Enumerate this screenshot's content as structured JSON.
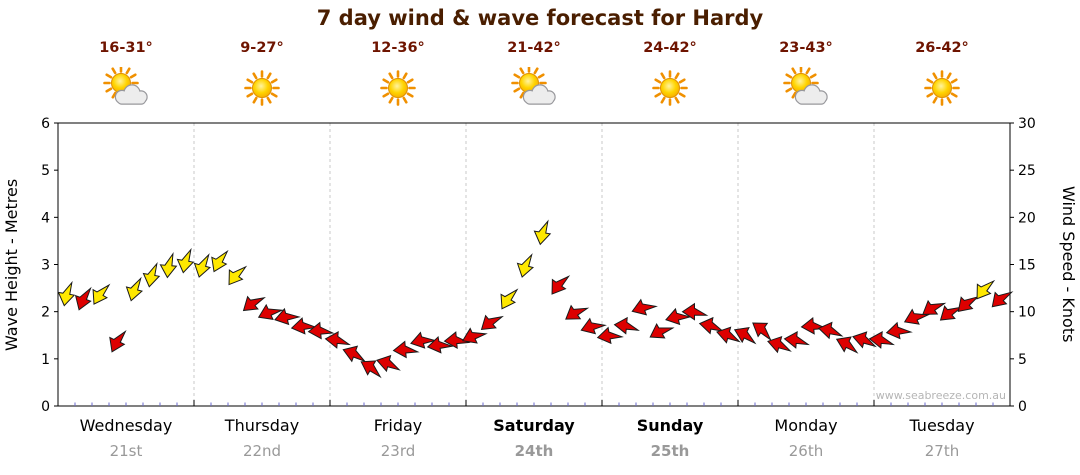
{
  "title": "7 day wind & wave forecast for Hardy",
  "watermark": "www.seabreeze.com.au",
  "colors": {
    "title": "#4a1e00",
    "temp": "#6e1400",
    "date": "#999999",
    "arrow_yellow": "#ffe800",
    "arrow_red": "#dd0000",
    "arrow_outline": "#1a1a1a",
    "axis": "#000000",
    "grid": "#c8c8c8",
    "minor_tick": "#6a6acc",
    "watermark": "#b5b5b5"
  },
  "forecast_days": [
    {
      "name": "Wednesday",
      "date": "21st",
      "temp": "16-31°",
      "icon": "sun-cloud",
      "bold": false
    },
    {
      "name": "Thursday",
      "date": "22nd",
      "temp": "9-27°",
      "icon": "sun",
      "bold": false
    },
    {
      "name": "Friday",
      "date": "23rd",
      "temp": "12-36°",
      "icon": "sun",
      "bold": false
    },
    {
      "name": "Saturday",
      "date": "24th",
      "temp": "21-42°",
      "icon": "sun-cloud",
      "bold": true
    },
    {
      "name": "Sunday",
      "date": "25th",
      "temp": "24-42°",
      "icon": "sun",
      "bold": true
    },
    {
      "name": "Monday",
      "date": "26th",
      "temp": "23-43°",
      "icon": "sun-cloud",
      "bold": false
    },
    {
      "name": "Tuesday",
      "date": "27th",
      "temp": "26-42°",
      "icon": "sun",
      "bold": false
    }
  ],
  "axes": {
    "left_label": "Wave Height - Metres",
    "right_label": "Wind Speed - Knots",
    "left_ticks": [
      0,
      1,
      2,
      3,
      4,
      5,
      6
    ],
    "right_ticks": [
      0,
      5,
      10,
      15,
      20,
      25,
      30
    ]
  },
  "chart_data": {
    "type": "wind-arrow-timeseries",
    "title": "7 day wind & wave forecast for Hardy",
    "categories": [
      "Wednesday 21st",
      "Thursday 22nd",
      "Friday 23rd",
      "Saturday 24th",
      "Sunday 25th",
      "Monday 26th",
      "Tuesday 27th"
    ],
    "points_per_day": 8,
    "y_left": {
      "label": "Wave Height - Metres",
      "min": 0,
      "max": 6,
      "tick_step": 1
    },
    "y_right": {
      "label": "Wind Speed - Knots",
      "min": 0,
      "max": 30,
      "tick_step": 5
    },
    "grid": "vertical-day-separators",
    "legend": "none",
    "series": [
      {
        "day": "Wednesday",
        "values_knots": [
          12,
          11.5,
          12,
          7,
          12.5,
          14,
          15,
          15.5
        ],
        "colors": [
          "Y",
          "R",
          "Y",
          "R",
          "Y",
          "Y",
          "Y",
          "Y"
        ],
        "dirs_deg": [
          100,
          110,
          120,
          115,
          105,
          100,
          95,
          100
        ]
      },
      {
        "day": "Thursday",
        "values_knots": [
          15,
          15.5,
          14,
          11,
          10,
          9.5,
          8.5,
          8
        ],
        "colors": [
          "Y",
          "Y",
          "Y",
          "R",
          "R",
          "R",
          "R",
          "R"
        ],
        "dirs_deg": [
          105,
          115,
          125,
          140,
          155,
          165,
          170,
          175
        ]
      },
      {
        "day": "Friday",
        "values_knots": [
          7,
          5.5,
          4,
          4.5,
          6,
          7,
          6.5,
          7
        ],
        "colors": [
          "R",
          "R",
          "R",
          "R",
          "R",
          "R",
          "R",
          "R"
        ],
        "dirs_deg": [
          185,
          200,
          210,
          195,
          175,
          165,
          170,
          175
        ]
      },
      {
        "day": "Saturday",
        "values_knots": [
          7.5,
          9,
          11.5,
          15,
          18.5,
          13,
          10,
          8.5
        ],
        "colors": [
          "R",
          "R",
          "Y",
          "Y",
          "Y",
          "R",
          "R",
          "R"
        ],
        "dirs_deg": [
          155,
          140,
          120,
          105,
          100,
          125,
          145,
          160
        ]
      },
      {
        "day": "Sunday",
        "values_knots": [
          7.5,
          8.5,
          10.5,
          8,
          9.5,
          10,
          8.5,
          7.5
        ],
        "colors": [
          "R",
          "R",
          "R",
          "R",
          "R",
          "R",
          "R",
          "R"
        ],
        "dirs_deg": [
          170,
          185,
          160,
          150,
          165,
          180,
          190,
          195
        ]
      },
      {
        "day": "Monday",
        "values_knots": [
          7.5,
          8,
          6.5,
          7,
          8.5,
          8,
          6.5,
          7
        ],
        "colors": [
          "R",
          "R",
          "R",
          "R",
          "R",
          "R",
          "R",
          "R"
        ],
        "dirs_deg": [
          205,
          215,
          195,
          185,
          175,
          190,
          205,
          195
        ]
      },
      {
        "day": "Tuesday",
        "values_knots": [
          7,
          8,
          9.5,
          10.5,
          10,
          11,
          12.5,
          11.5
        ],
        "colors": [
          "R",
          "R",
          "R",
          "R",
          "R",
          "R",
          "Y",
          "R"
        ],
        "dirs_deg": [
          185,
          170,
          155,
          145,
          140,
          135,
          125,
          135
        ]
      }
    ]
  }
}
